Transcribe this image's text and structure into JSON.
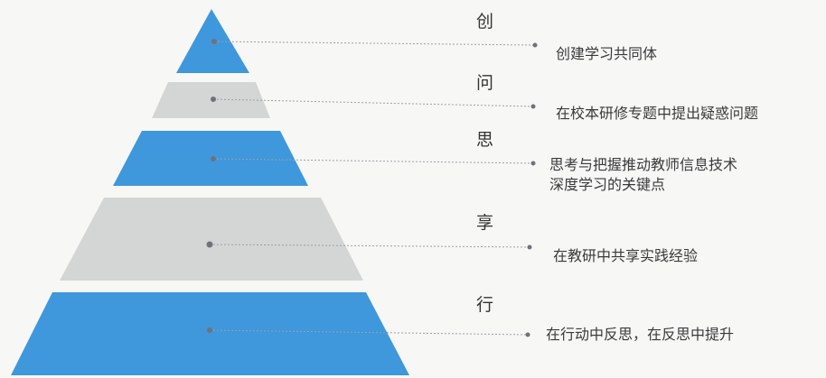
{
  "colors": {
    "blue": "#3f97dc",
    "gray": "#d4d6d6",
    "connector": "#9aa0a6",
    "dot": "#6f7378"
  },
  "levels": [
    {
      "title": "创",
      "description": [
        "创建学习共同体"
      ],
      "color": "blue"
    },
    {
      "title": "问",
      "description": [
        "在校本研修专题中提出疑惑问题"
      ],
      "color": "gray"
    },
    {
      "title": "思",
      "description": [
        "思考与把握推动教师信息技术",
        "深度学习的关键点"
      ],
      "color": "blue"
    },
    {
      "title": "享",
      "description": [
        "在教研中共享实践经验"
      ],
      "color": "gray"
    },
    {
      "title": "行",
      "description": [
        "在行动中反思，在反思中提升"
      ],
      "color": "blue"
    }
  ]
}
